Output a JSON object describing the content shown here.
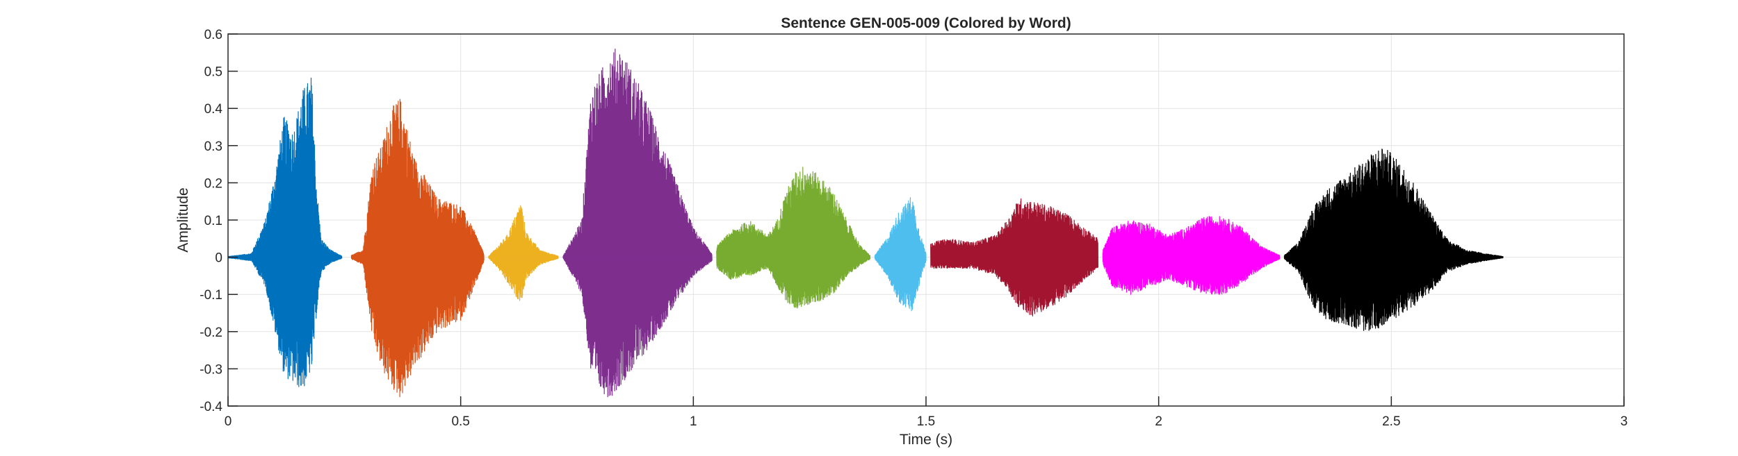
{
  "chart_data": {
    "type": "line",
    "title": "Sentence GEN-005-009 (Colored by Word)",
    "xlabel": "Time (s)",
    "ylabel": "Amplitude",
    "xlim": [
      0,
      3
    ],
    "ylim": [
      -0.4,
      0.6
    ],
    "xticks": [
      0,
      0.5,
      1,
      1.5,
      2,
      2.5,
      3
    ],
    "xtick_labels": [
      "0",
      "0.5",
      "1",
      "1.5",
      "2",
      "2.5",
      "3"
    ],
    "yticks": [
      -0.4,
      -0.3,
      -0.2,
      -0.1,
      0,
      0.1,
      0.2,
      0.3,
      0.4,
      0.5,
      0.6
    ],
    "ytick_labels": [
      "-0.4",
      "-0.3",
      "-0.2",
      "-0.1",
      "0",
      "0.1",
      "0.2",
      "0.3",
      "0.4",
      "0.5",
      "0.6"
    ],
    "grid": true,
    "legend": "none",
    "series": [
      {
        "color": "#0072BD",
        "t_start": 0.0,
        "t_end": 0.245,
        "envelope": {
          "t": [
            0.0,
            0.05,
            0.08,
            0.1,
            0.12,
            0.14,
            0.16,
            0.18,
            0.19,
            0.2,
            0.22,
            0.245
          ],
          "pos": [
            0.002,
            0.01,
            0.1,
            0.22,
            0.38,
            0.34,
            0.45,
            0.49,
            0.2,
            0.05,
            0.02,
            0.003
          ],
          "neg": [
            -0.002,
            -0.01,
            -0.08,
            -0.2,
            -0.32,
            -0.34,
            -0.36,
            -0.3,
            -0.15,
            -0.04,
            -0.015,
            -0.003
          ]
        }
      },
      {
        "color": "#D95319",
        "t_start": 0.265,
        "t_end": 0.55,
        "envelope": {
          "t": [
            0.265,
            0.29,
            0.31,
            0.33,
            0.35,
            0.37,
            0.4,
            0.45,
            0.5,
            0.53,
            0.55
          ],
          "pos": [
            0.005,
            0.02,
            0.25,
            0.3,
            0.4,
            0.43,
            0.27,
            0.16,
            0.14,
            0.07,
            0.01
          ],
          "neg": [
            -0.005,
            -0.02,
            -0.22,
            -0.3,
            -0.35,
            -0.38,
            -0.3,
            -0.2,
            -0.17,
            -0.08,
            -0.01
          ]
        }
      },
      {
        "color": "#EDB120",
        "t_start": 0.56,
        "t_end": 0.71,
        "envelope": {
          "t": [
            0.56,
            0.58,
            0.6,
            0.62,
            0.63,
            0.64,
            0.67,
            0.71
          ],
          "pos": [
            0.003,
            0.03,
            0.06,
            0.12,
            0.15,
            0.07,
            0.02,
            0.003
          ],
          "neg": [
            -0.003,
            -0.03,
            -0.07,
            -0.11,
            -0.12,
            -0.06,
            -0.02,
            -0.003
          ]
        }
      },
      {
        "color": "#7E2F8E",
        "t_start": 0.72,
        "t_end": 1.04,
        "envelope": {
          "t": [
            0.72,
            0.76,
            0.78,
            0.8,
            0.82,
            0.84,
            0.87,
            0.9,
            0.95,
            1.0,
            1.04
          ],
          "pos": [
            0.003,
            0.1,
            0.45,
            0.5,
            0.55,
            0.57,
            0.5,
            0.42,
            0.25,
            0.08,
            0.01
          ],
          "neg": [
            -0.003,
            -0.1,
            -0.32,
            -0.36,
            -0.38,
            -0.35,
            -0.3,
            -0.25,
            -0.15,
            -0.05,
            -0.01
          ]
        }
      },
      {
        "color": "#77AC30",
        "t_start": 1.05,
        "t_end": 1.38,
        "envelope": {
          "t": [
            1.05,
            1.08,
            1.12,
            1.16,
            1.18,
            1.2,
            1.22,
            1.24,
            1.27,
            1.3,
            1.33,
            1.36,
            1.38
          ],
          "pos": [
            0.03,
            0.07,
            0.1,
            0.06,
            0.1,
            0.18,
            0.23,
            0.25,
            0.22,
            0.18,
            0.1,
            0.03,
            0.005
          ],
          "neg": [
            -0.03,
            -0.06,
            -0.05,
            -0.03,
            -0.08,
            -0.12,
            -0.14,
            -0.13,
            -0.12,
            -0.1,
            -0.05,
            -0.02,
            -0.005
          ]
        }
      },
      {
        "color": "#4DBEEE",
        "t_start": 1.39,
        "t_end": 1.5,
        "envelope": {
          "t": [
            1.39,
            1.42,
            1.44,
            1.46,
            1.47,
            1.48,
            1.5
          ],
          "pos": [
            0.005,
            0.06,
            0.12,
            0.15,
            0.17,
            0.1,
            0.01
          ],
          "neg": [
            -0.005,
            -0.06,
            -0.12,
            -0.14,
            -0.15,
            -0.1,
            -0.01
          ]
        }
      },
      {
        "color": "#A2142F",
        "t_start": 1.51,
        "t_end": 1.87,
        "envelope": {
          "t": [
            1.51,
            1.55,
            1.6,
            1.65,
            1.68,
            1.7,
            1.73,
            1.76,
            1.8,
            1.84,
            1.87
          ],
          "pos": [
            0.04,
            0.05,
            0.04,
            0.06,
            0.11,
            0.16,
            0.15,
            0.14,
            0.12,
            0.08,
            0.05
          ],
          "neg": [
            -0.03,
            -0.03,
            -0.03,
            -0.05,
            -0.1,
            -0.14,
            -0.16,
            -0.14,
            -0.11,
            -0.06,
            -0.03
          ]
        }
      },
      {
        "color": "#FF00FF",
        "t_start": 1.88,
        "t_end": 2.26,
        "envelope": {
          "t": [
            1.88,
            1.9,
            1.94,
            1.98,
            2.02,
            2.06,
            2.1,
            2.14,
            2.18,
            2.22,
            2.26
          ],
          "pos": [
            0.02,
            0.08,
            0.1,
            0.09,
            0.06,
            0.08,
            0.11,
            0.11,
            0.08,
            0.03,
            0.005
          ],
          "neg": [
            -0.02,
            -0.08,
            -0.1,
            -0.08,
            -0.06,
            -0.08,
            -0.1,
            -0.1,
            -0.07,
            -0.03,
            -0.005
          ]
        }
      },
      {
        "color": "#000000",
        "t_start": 2.27,
        "t_end": 2.74,
        "envelope": {
          "t": [
            2.27,
            2.3,
            2.33,
            2.36,
            2.4,
            2.44,
            2.48,
            2.5,
            2.54,
            2.58,
            2.62,
            2.66,
            2.7,
            2.74
          ],
          "pos": [
            0.005,
            0.04,
            0.13,
            0.18,
            0.22,
            0.26,
            0.3,
            0.28,
            0.22,
            0.13,
            0.05,
            0.02,
            0.01,
            0.002
          ],
          "neg": [
            -0.005,
            -0.04,
            -0.13,
            -0.17,
            -0.18,
            -0.2,
            -0.19,
            -0.17,
            -0.14,
            -0.1,
            -0.04,
            -0.02,
            -0.01,
            -0.002
          ]
        }
      }
    ]
  }
}
